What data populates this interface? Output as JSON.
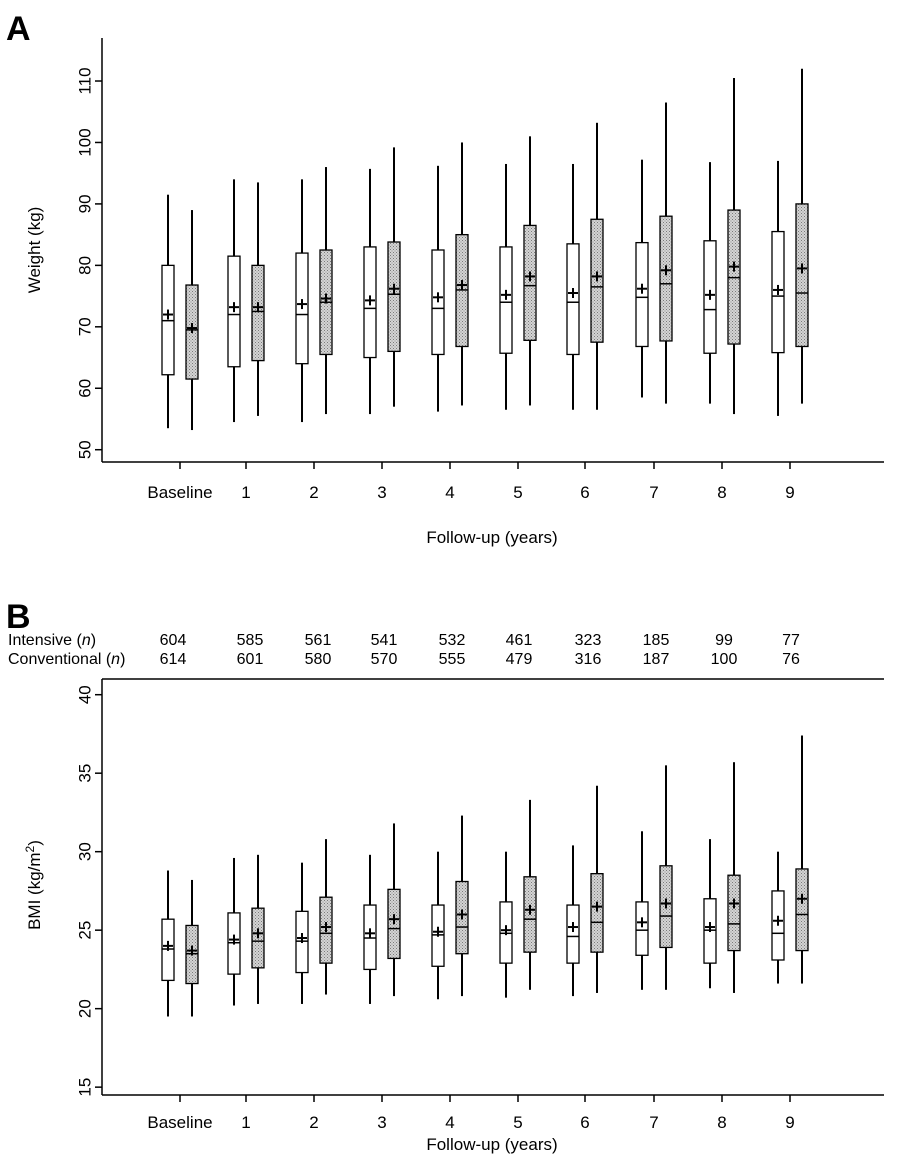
{
  "panels": [
    {
      "letter": "A"
    },
    {
      "letter": "B"
    }
  ],
  "n_table": {
    "rows": [
      {
        "label": "Intensive (",
        "label_italic": "n",
        "label_end": ")",
        "values": [
          "604",
          "585",
          "561",
          "541",
          "532",
          "461",
          "323",
          "185",
          "99",
          "77"
        ]
      },
      {
        "label": "Conventional (",
        "label_italic": "n",
        "label_end": ")",
        "values": [
          "614",
          "601",
          "580",
          "570",
          "555",
          "479",
          "316",
          "187",
          "100",
          "76"
        ]
      }
    ]
  },
  "colors": {
    "conventional_fill": "#ffffff",
    "intensive_fill": "#c8c8c8",
    "stroke": "#000000"
  },
  "chart_data": [
    {
      "type": "boxplot",
      "panel": "A",
      "xlabel": "Follow-up (years)",
      "ylabel": "Weight (kg)",
      "ylim": [
        48,
        117
      ],
      "yticks": [
        50,
        60,
        70,
        80,
        90,
        100,
        110
      ],
      "categories": [
        "Baseline",
        "1",
        "2",
        "3",
        "4",
        "5",
        "6",
        "7",
        "8",
        "9"
      ],
      "series": [
        {
          "fill": "white",
          "boxes": [
            {
              "min": 53.5,
              "q1": 62.2,
              "median": 71,
              "mean": 72,
              "q3": 80,
              "max": 91.5
            },
            {
              "min": 54.5,
              "q1": 63.5,
              "median": 72,
              "mean": 73.2,
              "q3": 81.5,
              "max": 94
            },
            {
              "min": 54.5,
              "q1": 64,
              "median": 72,
              "mean": 73.7,
              "q3": 82,
              "max": 94
            },
            {
              "min": 55.8,
              "q1": 65,
              "median": 73,
              "mean": 74.3,
              "q3": 83,
              "max": 95.7
            },
            {
              "min": 56.2,
              "q1": 65.5,
              "median": 73,
              "mean": 74.8,
              "q3": 82.5,
              "max": 96.2
            },
            {
              "min": 56.5,
              "q1": 65.7,
              "median": 74,
              "mean": 75.2,
              "q3": 83,
              "max": 96.5
            },
            {
              "min": 56.5,
              "q1": 65.5,
              "median": 74,
              "mean": 75.5,
              "q3": 83.5,
              "max": 96.5
            },
            {
              "min": 58.5,
              "q1": 66.8,
              "median": 74.8,
              "mean": 76.2,
              "q3": 83.7,
              "max": 97.2
            },
            {
              "min": 57.5,
              "q1": 65.7,
              "median": 72.8,
              "mean": 75.2,
              "q3": 84,
              "max": 96.8
            },
            {
              "min": 55.5,
              "q1": 65.8,
              "median": 75,
              "mean": 76,
              "q3": 85.5,
              "max": 97
            }
          ]
        },
        {
          "fill": "shaded",
          "boxes": [
            {
              "min": 53.2,
              "q1": 61.5,
              "median": 69.5,
              "mean": 69.8,
              "q3": 76.8,
              "max": 89
            },
            {
              "min": 55.5,
              "q1": 64.5,
              "median": 72.5,
              "mean": 73.2,
              "q3": 80,
              "max": 93.5
            },
            {
              "min": 55.8,
              "q1": 65.5,
              "median": 74,
              "mean": 74.6,
              "q3": 82.5,
              "max": 96
            },
            {
              "min": 57,
              "q1": 66,
              "median": 75.3,
              "mean": 76.2,
              "q3": 83.8,
              "max": 99.2
            },
            {
              "min": 57.2,
              "q1": 66.8,
              "median": 76,
              "mean": 76.8,
              "q3": 85,
              "max": 100
            },
            {
              "min": 57.2,
              "q1": 67.8,
              "median": 76.7,
              "mean": 78.2,
              "q3": 86.5,
              "max": 101
            },
            {
              "min": 56.5,
              "q1": 67.5,
              "median": 76.5,
              "mean": 78.2,
              "q3": 87.5,
              "max": 103.2
            },
            {
              "min": 57.5,
              "q1": 67.7,
              "median": 77,
              "mean": 79.2,
              "q3": 88,
              "max": 106.5
            },
            {
              "min": 55.8,
              "q1": 67.2,
              "median": 78,
              "mean": 79.8,
              "q3": 89,
              "max": 110.5
            },
            {
              "min": 57.5,
              "q1": 66.8,
              "median": 75.5,
              "mean": 79.5,
              "q3": 90,
              "max": 112
            }
          ]
        }
      ]
    },
    {
      "type": "boxplot",
      "panel": "B",
      "xlabel": "Follow-up (years)",
      "ylabel": "BMI (kg/m",
      "ylabel_sup": "2",
      "ylabel_end": ")",
      "ylim": [
        14.5,
        41
      ],
      "yticks": [
        15,
        20,
        25,
        30,
        35,
        40
      ],
      "categories": [
        "Baseline",
        "1",
        "2",
        "3",
        "4",
        "5",
        "6",
        "7",
        "8",
        "9"
      ],
      "series": [
        {
          "fill": "white",
          "boxes": [
            {
              "min": 19.5,
              "q1": 21.8,
              "median": 23.8,
              "mean": 24,
              "q3": 25.7,
              "max": 28.8
            },
            {
              "min": 20.2,
              "q1": 22.2,
              "median": 24.2,
              "mean": 24.4,
              "q3": 26.1,
              "max": 29.6
            },
            {
              "min": 20.3,
              "q1": 22.3,
              "median": 24.3,
              "mean": 24.5,
              "q3": 26.2,
              "max": 29.3
            },
            {
              "min": 20.3,
              "q1": 22.5,
              "median": 24.5,
              "mean": 24.8,
              "q3": 26.6,
              "max": 29.8
            },
            {
              "min": 20.6,
              "q1": 22.7,
              "median": 24.7,
              "mean": 24.9,
              "q3": 26.6,
              "max": 30
            },
            {
              "min": 20.7,
              "q1": 22.9,
              "median": 24.8,
              "mean": 25,
              "q3": 26.8,
              "max": 30
            },
            {
              "min": 20.8,
              "q1": 22.9,
              "median": 24.6,
              "mean": 25.2,
              "q3": 26.6,
              "max": 30.4
            },
            {
              "min": 21.2,
              "q1": 23.4,
              "median": 25,
              "mean": 25.5,
              "q3": 26.8,
              "max": 31.3
            },
            {
              "min": 21.3,
              "q1": 22.9,
              "median": 25,
              "mean": 25.2,
              "q3": 27,
              "max": 30.8
            },
            {
              "min": 21.6,
              "q1": 23.1,
              "median": 24.8,
              "mean": 25.6,
              "q3": 27.5,
              "max": 30
            }
          ]
        },
        {
          "fill": "shaded",
          "boxes": [
            {
              "min": 19.5,
              "q1": 21.6,
              "median": 23.5,
              "mean": 23.7,
              "q3": 25.3,
              "max": 28.2
            },
            {
              "min": 20.3,
              "q1": 22.6,
              "median": 24.3,
              "mean": 24.8,
              "q3": 26.4,
              "max": 29.8
            },
            {
              "min": 20.9,
              "q1": 22.9,
              "median": 24.8,
              "mean": 25.2,
              "q3": 27.1,
              "max": 30.8
            },
            {
              "min": 20.8,
              "q1": 23.2,
              "median": 25.1,
              "mean": 25.7,
              "q3": 27.6,
              "max": 31.8
            },
            {
              "min": 20.8,
              "q1": 23.5,
              "median": 25.2,
              "mean": 26,
              "q3": 28.1,
              "max": 32.3
            },
            {
              "min": 21.2,
              "q1": 23.6,
              "median": 25.7,
              "mean": 26.3,
              "q3": 28.4,
              "max": 33.3
            },
            {
              "min": 21,
              "q1": 23.6,
              "median": 25.5,
              "mean": 26.5,
              "q3": 28.6,
              "max": 34.2
            },
            {
              "min": 21.2,
              "q1": 23.9,
              "median": 25.9,
              "mean": 26.7,
              "q3": 29.1,
              "max": 35.5
            },
            {
              "min": 21,
              "q1": 23.7,
              "median": 25.4,
              "mean": 26.7,
              "q3": 28.5,
              "max": 35.7
            },
            {
              "min": 21.6,
              "q1": 23.7,
              "median": 26,
              "mean": 27,
              "q3": 28.9,
              "max": 37.4
            }
          ]
        }
      ]
    }
  ]
}
